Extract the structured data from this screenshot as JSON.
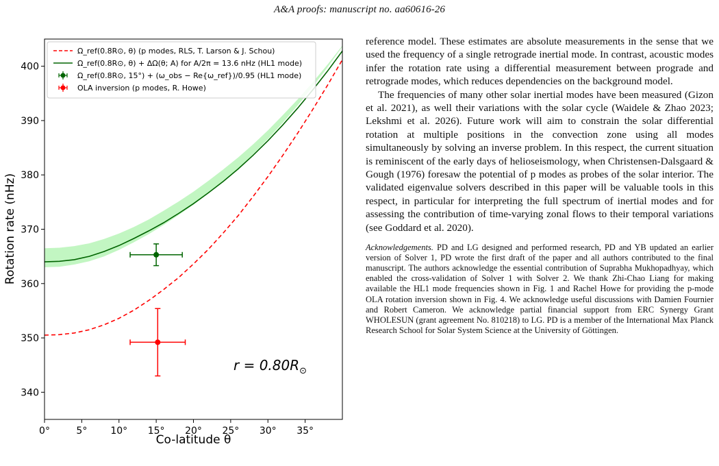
{
  "running_head": "A&A proofs: manuscript no. aa60616-26",
  "figure": {
    "radius_annotation": "r = 0.80R",
    "legend": [
      {
        "label": "Ω_ref(0.8R⊙, θ)  (p modes, RLS, T. Larson & J. Schou)",
        "color": "#ff0000",
        "style": "dashed"
      },
      {
        "label": "Ω_ref(0.8R⊙, θ) + ΔΩ(θ; A) for A/2π = 13.6 nHz (HL1 mode)",
        "color": "#006400",
        "style": "solid"
      },
      {
        "label": "Ω_ref(0.8R⊙, 15°) + (ω_obs − Re{ω_ref})/0.95  (HL1 mode)",
        "color": "#006400",
        "style": "marker"
      },
      {
        "label": "OLA inversion (p modes, R. Howe)",
        "color": "#ff0000",
        "style": "marker"
      }
    ]
  },
  "chart_data": {
    "type": "line",
    "xlabel": "Co-latitude θ",
    "ylabel": "Rotation rate (nHz)",
    "xlim": [
      0,
      40
    ],
    "ylim": [
      335,
      405
    ],
    "xticks": [
      "0°",
      "5°",
      "10°",
      "15°",
      "20°",
      "25°",
      "30°",
      "35°"
    ],
    "yticks": [
      "340",
      "350",
      "360",
      "370",
      "380",
      "390",
      "400"
    ],
    "x": [
      0,
      2,
      4,
      6,
      8,
      10,
      12,
      14,
      16,
      18,
      20,
      22,
      24,
      26,
      28,
      30,
      32,
      34,
      36,
      38,
      40
    ],
    "series": [
      {
        "name": "Ω_ref(0.8R⊙, θ)  (p modes, RLS, T. Larson & J. Schou)",
        "color": "#ff0000",
        "dash": true,
        "values": [
          350.5,
          350.6,
          350.9,
          351.5,
          352.4,
          353.6,
          355.1,
          356.9,
          358.9,
          361.1,
          363.6,
          366.3,
          369.3,
          372.5,
          376.0,
          379.7,
          383.6,
          387.7,
          392.0,
          396.5,
          401.2
        ]
      },
      {
        "name": "Ω_ref(0.8R⊙, θ) + ΔΩ(θ; A) for A/2π = 13.6 nHz (HL1 mode)",
        "color": "#006400",
        "dash": false,
        "values": [
          364.0,
          364.1,
          364.4,
          365.0,
          365.9,
          367.0,
          368.3,
          369.7,
          371.2,
          372.9,
          374.7,
          376.7,
          378.8,
          381.1,
          383.6,
          386.3,
          389.2,
          392.3,
          395.6,
          399.1,
          402.8
        ],
        "band_lower": [
          363.0,
          363.1,
          363.5,
          364.1,
          365.0,
          366.2,
          367.6,
          369.1,
          370.8,
          372.6,
          374.5,
          376.6,
          378.8,
          381.2,
          383.8,
          386.6,
          389.6,
          392.8,
          396.2,
          399.8,
          403.6
        ],
        "band_upper": [
          366.5,
          366.6,
          366.9,
          367.4,
          368.2,
          369.2,
          370.4,
          371.8,
          373.4,
          375.1,
          376.9,
          378.9,
          381.0,
          383.2,
          385.6,
          388.2,
          391.0,
          393.9,
          397.0,
          400.3,
          403.8
        ]
      }
    ],
    "points": [
      {
        "name": "Ω_ref(0.8R⊙, 15°) + (ω_obs − Re{ω_ref})/0.95  (HL1 mode)",
        "x": 15.0,
        "y": 365.3,
        "xerr": 3.5,
        "yerr": 2.0,
        "color": "#006400"
      },
      {
        "name": "OLA inversion (p modes, R. Howe)",
        "x": 15.2,
        "y": 349.2,
        "xerr": 3.7,
        "yerr": 6.2,
        "color": "#ff0000"
      }
    ],
    "legend_position": "top-left",
    "grid": false
  },
  "text": {
    "paragraph1": "reference model. These estimates are absolute measurements in the sense that we used the frequency of a single retrograde inertial mode. In contrast, acoustic modes infer the rotation rate using a differential measurement between prograde and retrograde modes, which reduces dependencies on the background model.",
    "paragraph2": "The frequencies of many other solar inertial modes have been measured (Gizon et al. 2021), as well their variations with the solar cycle (Waidele & Zhao 2023; Lekshmi et al. 2026). Future work will aim to constrain the solar differential rotation at multiple positions in the convection zone using all modes simultaneously by solving an inverse problem. In this respect, the current situation is reminiscent of the early days of helioseismology, when Christensen-Dalsgaard & Gough (1976) foresaw the potential of p modes as probes of the solar interior. The validated eigenvalue solvers described in this paper will be valuable tools in this respect, in particular for interpreting the full spectrum of inertial modes and for assessing the contribution of time-varying zonal flows to their temporal variations (see Goddard et al. 2020).",
    "ack_heading": "Acknowledgements.",
    "ack_body": "PD and LG designed and performed research, PD and YB updated an earlier version of Solver 1, PD wrote the first draft of the paper and all authors contributed to the final manuscript. The authors acknowledge the essential contribution of Suprabha Mukhopadhyay, which enabled the cross-validation of Solver 1 with Solver 2. We thank Zhi-Chao Liang for making available the HL1 mode frequencies shown in Fig. 1 and Rachel Howe for providing the p-mode OLA rotation inversion shown in Fig. 4. We acknowledge useful discussions with Damien Fournier and Robert Cameron. We acknowledge partial financial support from ERC Synergy Grant WHOLESUN (grant agreement No. 810218) to LG. PD is a member of the International Max Planck Research School for Solar System Science at the University of Göttingen."
  }
}
